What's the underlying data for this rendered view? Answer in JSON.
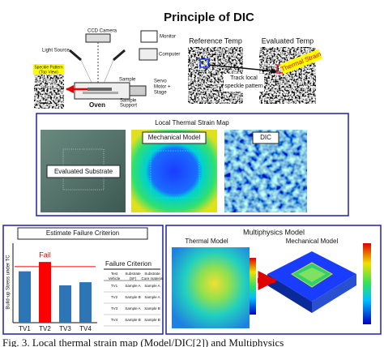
{
  "header": {
    "title": "Principle of DIC"
  },
  "apparatus": {
    "ccd_camera": "CCD Camera",
    "monitor": "Monitor",
    "computer": "Computer",
    "light_source": "Light Source",
    "speckle_pattern": [
      "Speckle Pattern",
      "(Top View)"
    ],
    "sample": "Sample",
    "sample_support": [
      "Sample",
      "Support"
    ],
    "servo": [
      "Servo",
      "Motor +",
      "Stage"
    ],
    "oven": "Oven"
  },
  "tracking": {
    "reference": "Reference Temp",
    "evaluated": "Evaluated Temp",
    "thermal_strain": "Thermal Strain",
    "track": [
      "Track local",
      "speckle pattern"
    ]
  },
  "strain_map": {
    "title": "Local Thermal Strain Map",
    "panels": [
      "Evaluated Substrate",
      "Mechanical Model",
      "DIC"
    ]
  },
  "failure": {
    "title": "Estimate Failure Criterion",
    "chart": {
      "type": "bar",
      "y_label": "Build-up Stress under TC",
      "categories": [
        "TV1",
        "TV2",
        "TV3",
        "TV4"
      ],
      "values": [
        0.66,
        0.78,
        0.48,
        0.52
      ],
      "colors": [
        "#2e75b6",
        "#ff0000",
        "#2e75b6",
        "#2e75b6"
      ],
      "ylim": [
        0,
        1
      ],
      "threshold": 0.72,
      "threshold_color": "#ff0000",
      "annotation": "Fail"
    },
    "table": {
      "title": "Failure Criterion",
      "columns": [
        [
          "Test",
          "Vehicle"
        ],
        [
          "Substrate",
          "(SF)"
        ],
        [
          "Substrate",
          "Core material"
        ]
      ],
      "rows": [
        [
          "TV1",
          "Sample A",
          "Sample A"
        ],
        [
          "TV2",
          "Sample B",
          "Sample A"
        ],
        [
          "TV3",
          "Sample A",
          "Sample B"
        ],
        [
          "TV4",
          "Sample B",
          "Sample B"
        ]
      ]
    }
  },
  "multiphysics": {
    "title": "Multiphysics Model",
    "panels": [
      "Thermal Model",
      "Mechanical Model"
    ]
  },
  "caption": "Fig. 3. Local thermal strain map (Model/DIC[2]) and Multiphysics"
}
